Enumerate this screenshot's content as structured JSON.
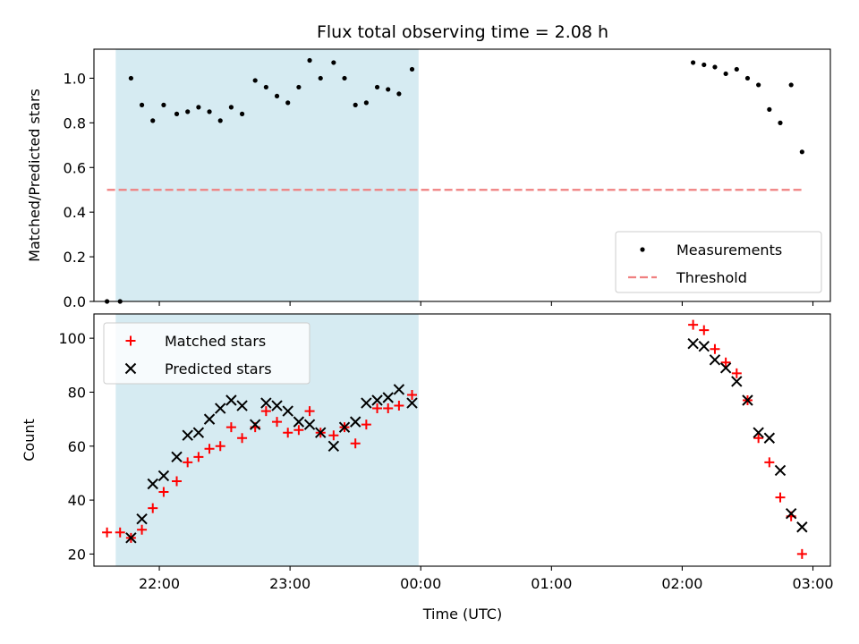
{
  "chart_data": [
    {
      "type": "scatter",
      "title": "Flux total observing time = 2.08 h",
      "xlabel": "",
      "ylabel": "Matched/Predicted stars",
      "x_unit": "time of day (UTC)",
      "xlim": [
        "21:30",
        "03:08"
      ],
      "ylim": [
        0,
        1.13
      ],
      "yticks": [
        0.0,
        0.2,
        0.4,
        0.6,
        0.8,
        1.0
      ],
      "ytick_labels": [
        "0.0",
        "0.2",
        "0.4",
        "0.6",
        "0.8",
        "1.0"
      ],
      "xticks": [
        "22:00",
        "23:00",
        "00:00",
        "01:00",
        "02:00",
        "03:00"
      ],
      "xtick_labels_shown": false,
      "shaded_region": {
        "from": "21:40",
        "to": "23:59",
        "color": "#add8e6"
      },
      "legend": {
        "position": "lower-right",
        "entries": [
          "Measurements",
          "Threshold"
        ]
      },
      "series": [
        {
          "name": "Measurements",
          "marker": "dot",
          "color": "#000000",
          "points": [
            [
              "21:36",
              0.0
            ],
            [
              "21:42",
              0.0
            ],
            [
              "21:47",
              1.0
            ],
            [
              "21:52",
              0.88
            ],
            [
              "21:57",
              0.81
            ],
            [
              "22:02",
              0.88
            ],
            [
              "22:08",
              0.84
            ],
            [
              "22:13",
              0.85
            ],
            [
              "22:18",
              0.87
            ],
            [
              "22:23",
              0.85
            ],
            [
              "22:28",
              0.81
            ],
            [
              "22:33",
              0.87
            ],
            [
              "22:38",
              0.84
            ],
            [
              "22:44",
              0.99
            ],
            [
              "22:49",
              0.96
            ],
            [
              "22:54",
              0.92
            ],
            [
              "22:59",
              0.89
            ],
            [
              "23:04",
              0.96
            ],
            [
              "23:09",
              1.08
            ],
            [
              "23:14",
              1.0
            ],
            [
              "23:20",
              1.07
            ],
            [
              "23:25",
              1.0
            ],
            [
              "23:30",
              0.88
            ],
            [
              "23:35",
              0.89
            ],
            [
              "23:40",
              0.96
            ],
            [
              "23:45",
              0.95
            ],
            [
              "23:50",
              0.93
            ],
            [
              "23:56",
              1.04
            ],
            [
              "02:05",
              1.07
            ],
            [
              "02:10",
              1.06
            ],
            [
              "02:15",
              1.05
            ],
            [
              "02:20",
              1.02
            ],
            [
              "02:25",
              1.04
            ],
            [
              "02:30",
              1.0
            ],
            [
              "02:35",
              0.97
            ],
            [
              "02:40",
              0.86
            ],
            [
              "02:45",
              0.8
            ],
            [
              "02:50",
              0.97
            ],
            [
              "02:55",
              0.67
            ]
          ]
        },
        {
          "name": "Threshold",
          "style": "dashed-line",
          "color": "#f08080",
          "points": [
            [
              "21:36",
              0.5
            ],
            [
              "02:55",
              0.5
            ]
          ]
        }
      ]
    },
    {
      "type": "scatter",
      "title": "",
      "xlabel": "Time (UTC)",
      "ylabel": "Count",
      "x_unit": "time of day (UTC)",
      "xlim": [
        "21:30",
        "03:08"
      ],
      "ylim": [
        15.5,
        109
      ],
      "yticks": [
        20,
        40,
        60,
        80,
        100
      ],
      "xticks": [
        "22:00",
        "23:00",
        "00:00",
        "01:00",
        "02:00",
        "03:00"
      ],
      "xtick_labels": [
        "22:00",
        "23:00",
        "00:00",
        "01:00",
        "02:00",
        "03:00"
      ],
      "shaded_region": {
        "from": "21:40",
        "to": "23:59",
        "color": "#add8e6"
      },
      "legend": {
        "position": "top-left",
        "entries": [
          "Matched stars",
          "Predicted stars"
        ]
      },
      "series": [
        {
          "name": "Matched stars",
          "marker": "plus",
          "color": "#ff0000",
          "points": [
            [
              "21:36",
              28
            ],
            [
              "21:42",
              28
            ],
            [
              "21:47",
              26
            ],
            [
              "21:52",
              29
            ],
            [
              "21:57",
              37
            ],
            [
              "22:02",
              43
            ],
            [
              "22:08",
              47
            ],
            [
              "22:13",
              54
            ],
            [
              "22:18",
              56
            ],
            [
              "22:23",
              59
            ],
            [
              "22:28",
              60
            ],
            [
              "22:33",
              67
            ],
            [
              "22:38",
              63
            ],
            [
              "22:44",
              67
            ],
            [
              "22:49",
              73
            ],
            [
              "22:54",
              69
            ],
            [
              "22:59",
              65
            ],
            [
              "23:04",
              66
            ],
            [
              "23:09",
              73
            ],
            [
              "23:14",
              65
            ],
            [
              "23:20",
              64
            ],
            [
              "23:25",
              67
            ],
            [
              "23:30",
              61
            ],
            [
              "23:35",
              68
            ],
            [
              "23:40",
              74
            ],
            [
              "23:45",
              74
            ],
            [
              "23:50",
              75
            ],
            [
              "23:56",
              79
            ],
            [
              "02:05",
              105
            ],
            [
              "02:10",
              103
            ],
            [
              "02:15",
              96
            ],
            [
              "02:20",
              91
            ],
            [
              "02:25",
              87
            ],
            [
              "02:30",
              77
            ],
            [
              "02:35",
              63
            ],
            [
              "02:40",
              54
            ],
            [
              "02:45",
              41
            ],
            [
              "02:50",
              34
            ],
            [
              "02:55",
              20
            ]
          ]
        },
        {
          "name": "Predicted stars",
          "marker": "x",
          "color": "#000000",
          "points": [
            [
              "21:47",
              26
            ],
            [
              "21:52",
              33
            ],
            [
              "21:57",
              46
            ],
            [
              "22:02",
              49
            ],
            [
              "22:08",
              56
            ],
            [
              "22:13",
              64
            ],
            [
              "22:18",
              65
            ],
            [
              "22:23",
              70
            ],
            [
              "22:28",
              74
            ],
            [
              "22:33",
              77
            ],
            [
              "22:38",
              75
            ],
            [
              "22:44",
              68
            ],
            [
              "22:49",
              76
            ],
            [
              "22:54",
              75
            ],
            [
              "22:59",
              73
            ],
            [
              "23:04",
              69
            ],
            [
              "23:09",
              68
            ],
            [
              "23:14",
              65
            ],
            [
              "23:20",
              60
            ],
            [
              "23:25",
              67
            ],
            [
              "23:30",
              69
            ],
            [
              "23:35",
              76
            ],
            [
              "23:40",
              77
            ],
            [
              "23:45",
              78
            ],
            [
              "23:50",
              81
            ],
            [
              "23:56",
              76
            ],
            [
              "02:05",
              98
            ],
            [
              "02:10",
              97
            ],
            [
              "02:15",
              92
            ],
            [
              "02:20",
              89
            ],
            [
              "02:25",
              84
            ],
            [
              "02:30",
              77
            ],
            [
              "02:35",
              65
            ],
            [
              "02:40",
              63
            ],
            [
              "02:45",
              51
            ],
            [
              "02:50",
              35
            ],
            [
              "02:55",
              30
            ]
          ]
        }
      ]
    }
  ]
}
